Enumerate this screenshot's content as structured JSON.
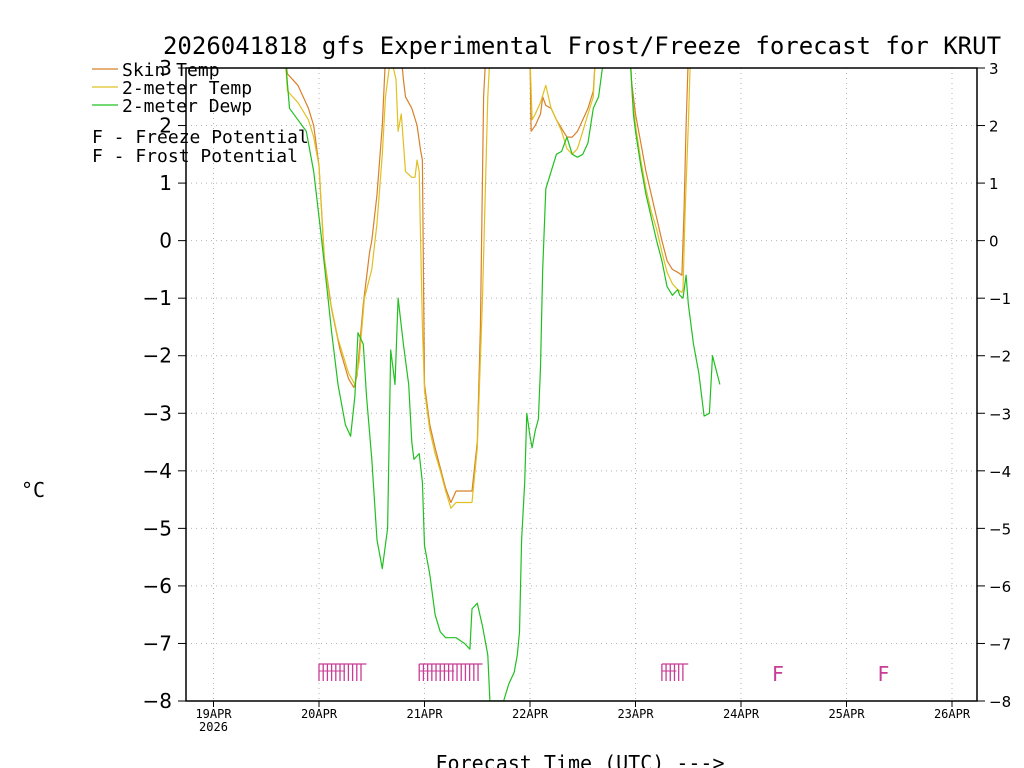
{
  "chart_data": {
    "type": "line",
    "title": "2026041818 gfs Experimental Frost/Freeze forecast for KRUT",
    "xlabel": "Forecast Time (UTC) --->",
    "ylabel": "°C",
    "ylim": [
      -8,
      3
    ],
    "xlim_days": [
      -0.3,
      7.25
    ],
    "grid": true,
    "y_ticks": [
      "3",
      "2",
      "1",
      "0",
      "−1",
      "−2",
      "−3",
      "−4",
      "−5",
      "−6",
      "−7",
      "−8"
    ],
    "y_tick_values": [
      3,
      2,
      1,
      0,
      -1,
      -2,
      -3,
      -4,
      -5,
      -6,
      -7,
      -8
    ],
    "x_ticks": [
      {
        "day": 0,
        "label": "19APR",
        "sub": "2026"
      },
      {
        "day": 1,
        "label": "20APR",
        "sub": ""
      },
      {
        "day": 2,
        "label": "21APR",
        "sub": ""
      },
      {
        "day": 3,
        "label": "22APR",
        "sub": ""
      },
      {
        "day": 4,
        "label": "23APR",
        "sub": ""
      },
      {
        "day": 5,
        "label": "24APR",
        "sub": ""
      },
      {
        "day": 6,
        "label": "25APR",
        "sub": ""
      },
      {
        "day": 7,
        "label": "26APR",
        "sub": ""
      }
    ],
    "legend": [
      {
        "name": "Skin Temp",
        "color": "#d8802a"
      },
      {
        "name": "2-meter Temp",
        "color": "#e0c020"
      },
      {
        "name": "2-meter Dewp",
        "color": "#20c020"
      }
    ],
    "potential_legend": [
      {
        "text": "F - Freeze Potential",
        "color": "#c83c96"
      },
      {
        "text": "F - Frost Potential",
        "color": "#5050e0"
      }
    ],
    "series": [
      {
        "name": "Skin Temp",
        "color": "#d8802a",
        "points": [
          [
            0.68,
            3.2
          ],
          [
            0.7,
            2.9
          ],
          [
            0.8,
            2.7
          ],
          [
            0.9,
            2.3
          ],
          [
            0.95,
            2.0
          ],
          [
            1.0,
            1.3
          ],
          [
            1.05,
            -0.3
          ],
          [
            1.12,
            -1.2
          ],
          [
            1.2,
            -1.9
          ],
          [
            1.28,
            -2.4
          ],
          [
            1.33,
            -2.55
          ],
          [
            1.36,
            -2.35
          ],
          [
            1.42,
            -1.1
          ],
          [
            1.48,
            -0.2
          ],
          [
            1.5,
            0.0
          ],
          [
            1.55,
            0.8
          ],
          [
            1.6,
            2.0
          ],
          [
            1.63,
            3.2
          ],
          [
            1.78,
            3.2
          ],
          [
            1.8,
            2.8
          ],
          [
            1.82,
            2.5
          ],
          [
            1.88,
            2.3
          ],
          [
            1.93,
            2.0
          ],
          [
            1.96,
            1.6
          ],
          [
            1.98,
            1.4
          ],
          [
            2.0,
            -2.5
          ],
          [
            2.05,
            -3.2
          ],
          [
            2.1,
            -3.6
          ],
          [
            2.15,
            -3.95
          ],
          [
            2.2,
            -4.3
          ],
          [
            2.25,
            -4.55
          ],
          [
            2.3,
            -4.35
          ],
          [
            2.45,
            -4.35
          ],
          [
            2.5,
            -3.5
          ],
          [
            2.53,
            -1.5
          ],
          [
            2.56,
            2.5
          ],
          [
            2.58,
            3.2
          ],
          [
            3.0,
            3.2
          ],
          [
            3.01,
            1.9
          ],
          [
            3.05,
            2.0
          ],
          [
            3.1,
            2.2
          ],
          [
            3.12,
            2.5
          ],
          [
            3.15,
            2.35
          ],
          [
            3.2,
            2.3
          ],
          [
            3.25,
            2.1
          ],
          [
            3.3,
            1.95
          ],
          [
            3.35,
            1.8
          ],
          [
            3.4,
            1.8
          ],
          [
            3.45,
            1.9
          ],
          [
            3.5,
            2.1
          ],
          [
            3.55,
            2.3
          ],
          [
            3.6,
            2.6
          ],
          [
            3.62,
            3.2
          ],
          [
            3.95,
            3.2
          ],
          [
            3.96,
            2.8
          ],
          [
            4.0,
            2.2
          ],
          [
            4.05,
            1.7
          ],
          [
            4.1,
            1.2
          ],
          [
            4.15,
            0.8
          ],
          [
            4.2,
            0.4
          ],
          [
            4.25,
            0.0
          ],
          [
            4.3,
            -0.35
          ],
          [
            4.35,
            -0.5
          ],
          [
            4.4,
            -0.55
          ],
          [
            4.44,
            -0.6
          ],
          [
            4.46,
            0.5
          ],
          [
            4.48,
            2.0
          ],
          [
            4.5,
            3.2
          ]
        ]
      },
      {
        "name": "2-meter Temp",
        "color": "#e0c020",
        "points": [
          [
            0.68,
            3.2
          ],
          [
            0.7,
            2.6
          ],
          [
            0.8,
            2.4
          ],
          [
            0.9,
            2.1
          ],
          [
            0.95,
            1.8
          ],
          [
            1.0,
            1.3
          ],
          [
            1.05,
            -0.3
          ],
          [
            1.1,
            -1.0
          ],
          [
            1.18,
            -1.7
          ],
          [
            1.28,
            -2.3
          ],
          [
            1.34,
            -2.5
          ],
          [
            1.38,
            -2.1
          ],
          [
            1.43,
            -1.0
          ],
          [
            1.5,
            -0.5
          ],
          [
            1.55,
            0.3
          ],
          [
            1.6,
            1.5
          ],
          [
            1.63,
            2.5
          ],
          [
            1.68,
            3.2
          ],
          [
            1.73,
            2.8
          ],
          [
            1.75,
            1.9
          ],
          [
            1.78,
            2.2
          ],
          [
            1.82,
            1.2
          ],
          [
            1.88,
            1.1
          ],
          [
            1.91,
            1.1
          ],
          [
            1.93,
            1.4
          ],
          [
            1.95,
            1.2
          ],
          [
            1.98,
            -1.5
          ],
          [
            2.0,
            -2.6
          ],
          [
            2.05,
            -3.3
          ],
          [
            2.1,
            -3.7
          ],
          [
            2.15,
            -4.0
          ],
          [
            2.2,
            -4.35
          ],
          [
            2.25,
            -4.65
          ],
          [
            2.3,
            -4.55
          ],
          [
            2.45,
            -4.55
          ],
          [
            2.5,
            -3.6
          ],
          [
            2.55,
            -1.0
          ],
          [
            2.6,
            2.5
          ],
          [
            2.62,
            3.2
          ],
          [
            3.0,
            3.2
          ],
          [
            3.02,
            2.1
          ],
          [
            3.05,
            2.2
          ],
          [
            3.1,
            2.4
          ],
          [
            3.15,
            2.7
          ],
          [
            3.2,
            2.3
          ],
          [
            3.25,
            2.1
          ],
          [
            3.3,
            1.9
          ],
          [
            3.35,
            1.6
          ],
          [
            3.4,
            1.5
          ],
          [
            3.45,
            1.6
          ],
          [
            3.5,
            1.9
          ],
          [
            3.55,
            2.2
          ],
          [
            3.6,
            2.5
          ],
          [
            3.62,
            3.2
          ],
          [
            3.95,
            3.2
          ],
          [
            3.97,
            2.5
          ],
          [
            4.0,
            2.0
          ],
          [
            4.05,
            1.4
          ],
          [
            4.1,
            0.9
          ],
          [
            4.15,
            0.5
          ],
          [
            4.2,
            0.2
          ],
          [
            4.25,
            -0.2
          ],
          [
            4.3,
            -0.55
          ],
          [
            4.35,
            -0.75
          ],
          [
            4.4,
            -0.85
          ],
          [
            4.44,
            -0.9
          ],
          [
            4.45,
            -0.85
          ],
          [
            4.47,
            0.5
          ],
          [
            4.5,
            2.0
          ],
          [
            4.52,
            3.2
          ]
        ]
      },
      {
        "name": "2-meter Dewp",
        "color": "#20c020",
        "points": [
          [
            0.68,
            3.2
          ],
          [
            0.72,
            2.3
          ],
          [
            0.8,
            2.1
          ],
          [
            0.88,
            1.9
          ],
          [
            0.95,
            1.2
          ],
          [
            1.02,
            0.1
          ],
          [
            1.08,
            -0.9
          ],
          [
            1.12,
            -1.6
          ],
          [
            1.18,
            -2.5
          ],
          [
            1.25,
            -3.2
          ],
          [
            1.3,
            -3.4
          ],
          [
            1.34,
            -2.7
          ],
          [
            1.37,
            -1.6
          ],
          [
            1.42,
            -1.8
          ],
          [
            1.45,
            -2.7
          ],
          [
            1.5,
            -3.8
          ],
          [
            1.55,
            -5.2
          ],
          [
            1.6,
            -5.7
          ],
          [
            1.65,
            -5.0
          ],
          [
            1.68,
            -1.9
          ],
          [
            1.7,
            -2.2
          ],
          [
            1.72,
            -2.5
          ],
          [
            1.75,
            -1.0
          ],
          [
            1.8,
            -1.8
          ],
          [
            1.85,
            -2.5
          ],
          [
            1.88,
            -3.5
          ],
          [
            1.9,
            -3.8
          ],
          [
            1.95,
            -3.7
          ],
          [
            1.98,
            -4.2
          ],
          [
            2.0,
            -5.3
          ],
          [
            2.05,
            -5.8
          ],
          [
            2.1,
            -6.5
          ],
          [
            2.15,
            -6.8
          ],
          [
            2.2,
            -6.9
          ],
          [
            2.3,
            -6.9
          ],
          [
            2.38,
            -7.0
          ],
          [
            2.43,
            -7.1
          ],
          [
            2.45,
            -6.4
          ],
          [
            2.5,
            -6.3
          ],
          [
            2.55,
            -6.7
          ],
          [
            2.6,
            -7.2
          ],
          [
            2.62,
            -8.0
          ],
          [
            2.75,
            -8.0
          ],
          [
            2.8,
            -7.7
          ],
          [
            2.85,
            -7.5
          ],
          [
            2.88,
            -7.2
          ],
          [
            2.9,
            -6.8
          ],
          [
            2.92,
            -5.2
          ],
          [
            2.95,
            -4.2
          ],
          [
            2.97,
            -3.0
          ],
          [
            3.0,
            -3.4
          ],
          [
            3.02,
            -3.6
          ],
          [
            3.05,
            -3.3
          ],
          [
            3.08,
            -3.1
          ],
          [
            3.1,
            -2.2
          ],
          [
            3.12,
            -0.5
          ],
          [
            3.15,
            0.9
          ],
          [
            3.2,
            1.2
          ],
          [
            3.25,
            1.5
          ],
          [
            3.3,
            1.55
          ],
          [
            3.35,
            1.8
          ],
          [
            3.4,
            1.5
          ],
          [
            3.45,
            1.45
          ],
          [
            3.5,
            1.5
          ],
          [
            3.55,
            1.7
          ],
          [
            3.6,
            2.3
          ],
          [
            3.65,
            2.5
          ],
          [
            3.7,
            3.2
          ],
          [
            3.95,
            3.2
          ],
          [
            3.98,
            2.2
          ],
          [
            4.0,
            1.9
          ],
          [
            4.05,
            1.3
          ],
          [
            4.1,
            0.8
          ],
          [
            4.15,
            0.4
          ],
          [
            4.2,
            0.0
          ],
          [
            4.25,
            -0.35
          ],
          [
            4.3,
            -0.8
          ],
          [
            4.35,
            -0.95
          ],
          [
            4.4,
            -0.85
          ],
          [
            4.42,
            -0.95
          ],
          [
            4.45,
            -1.0
          ],
          [
            4.48,
            -0.6
          ],
          [
            4.5,
            -1.1
          ],
          [
            4.55,
            -1.8
          ],
          [
            4.6,
            -2.3
          ],
          [
            4.65,
            -3.05
          ],
          [
            4.7,
            -3.0
          ],
          [
            4.73,
            -2.0
          ],
          [
            4.8,
            -2.5
          ]
        ]
      }
    ],
    "freeze_potential": [
      {
        "day_start": 1.0,
        "day_end": 1.45,
        "color": "#c83c96"
      },
      {
        "day_start": 1.95,
        "day_end": 2.55,
        "color": "#c83c96"
      },
      {
        "day_start": 4.25,
        "day_end": 4.5,
        "color": "#c83c96"
      },
      {
        "day_start": 5.35,
        "day_end": 5.35,
        "color": "#c83c96"
      },
      {
        "day_start": 6.35,
        "day_end": 6.35,
        "color": "#c83c96"
      }
    ]
  }
}
